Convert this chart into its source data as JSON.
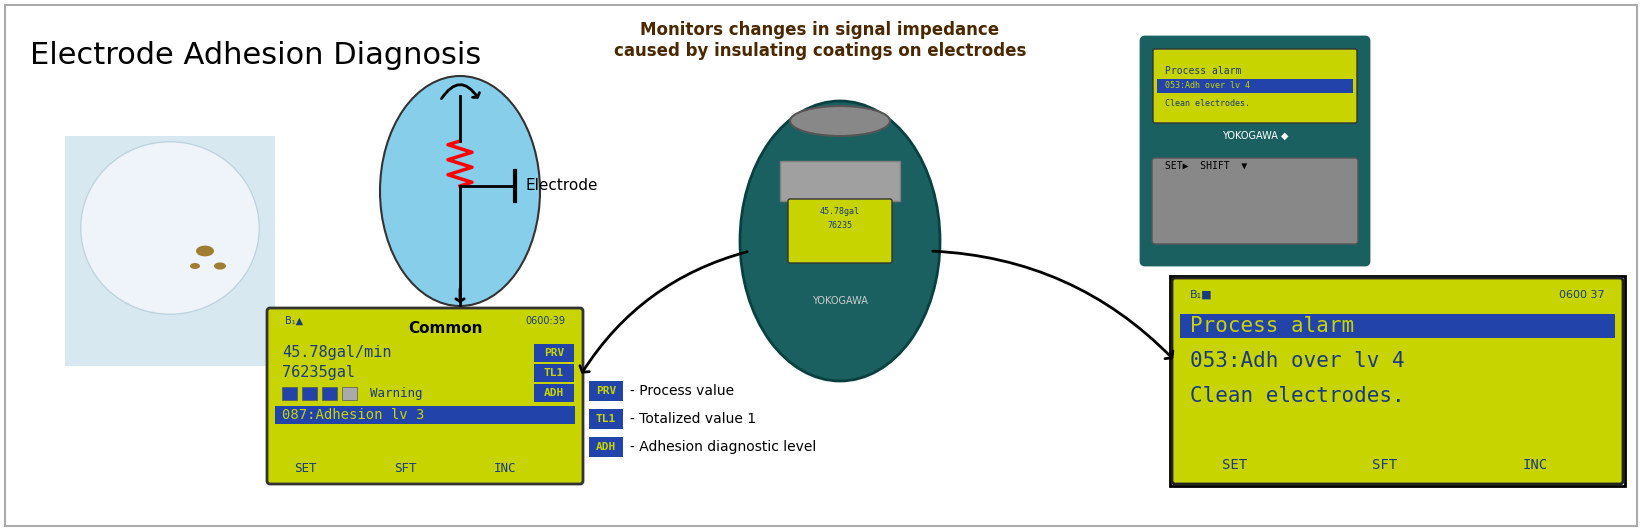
{
  "title": "Electrode Adhesion Diagnosis",
  "title_fontsize": 22,
  "bg_color": "#ffffff",
  "border_color": "#aaaaaa",
  "subtitle": "Monitors changes in signal impedance\ncaused by insulating coatings on electrodes",
  "subtitle_fontsize": 12,
  "subtitle_color": "#4a2800",
  "electrode_label": "Electrode",
  "common_label": "Common",
  "display1_lines": [
    "45.78gal/min",
    "76235gal",
    "Warning",
    "087:Adhesion lv 3"
  ],
  "display1_tags": [
    "PRV",
    "TL1",
    "ADH"
  ],
  "display1_footer": [
    "SET",
    "SFT",
    "INC"
  ],
  "display1_header": "0600:39",
  "display2_lines": [
    "Process alarm",
    "053:Adh over lv 4",
    "Clean electrodes."
  ],
  "display2_footer": [
    "SET",
    "SFT",
    "INC"
  ],
  "display2_header": "0600 37",
  "legend_items": [
    {
      "tag": "PRV",
      "desc": "- Process value"
    },
    {
      "tag": "TL1",
      "desc": "- Totalized value 1"
    },
    {
      "tag": "ADH",
      "desc": "- Adhesion diagnostic level"
    }
  ],
  "lcd_bg": "#c8d400",
  "lcd_blue_bg": "#2244aa",
  "lcd_text_color": "#1a3a80",
  "lcd_selected_color": "#3366cc",
  "lcd_tag_bg": "#2244aa",
  "lcd_tag_text": "#c8d400"
}
